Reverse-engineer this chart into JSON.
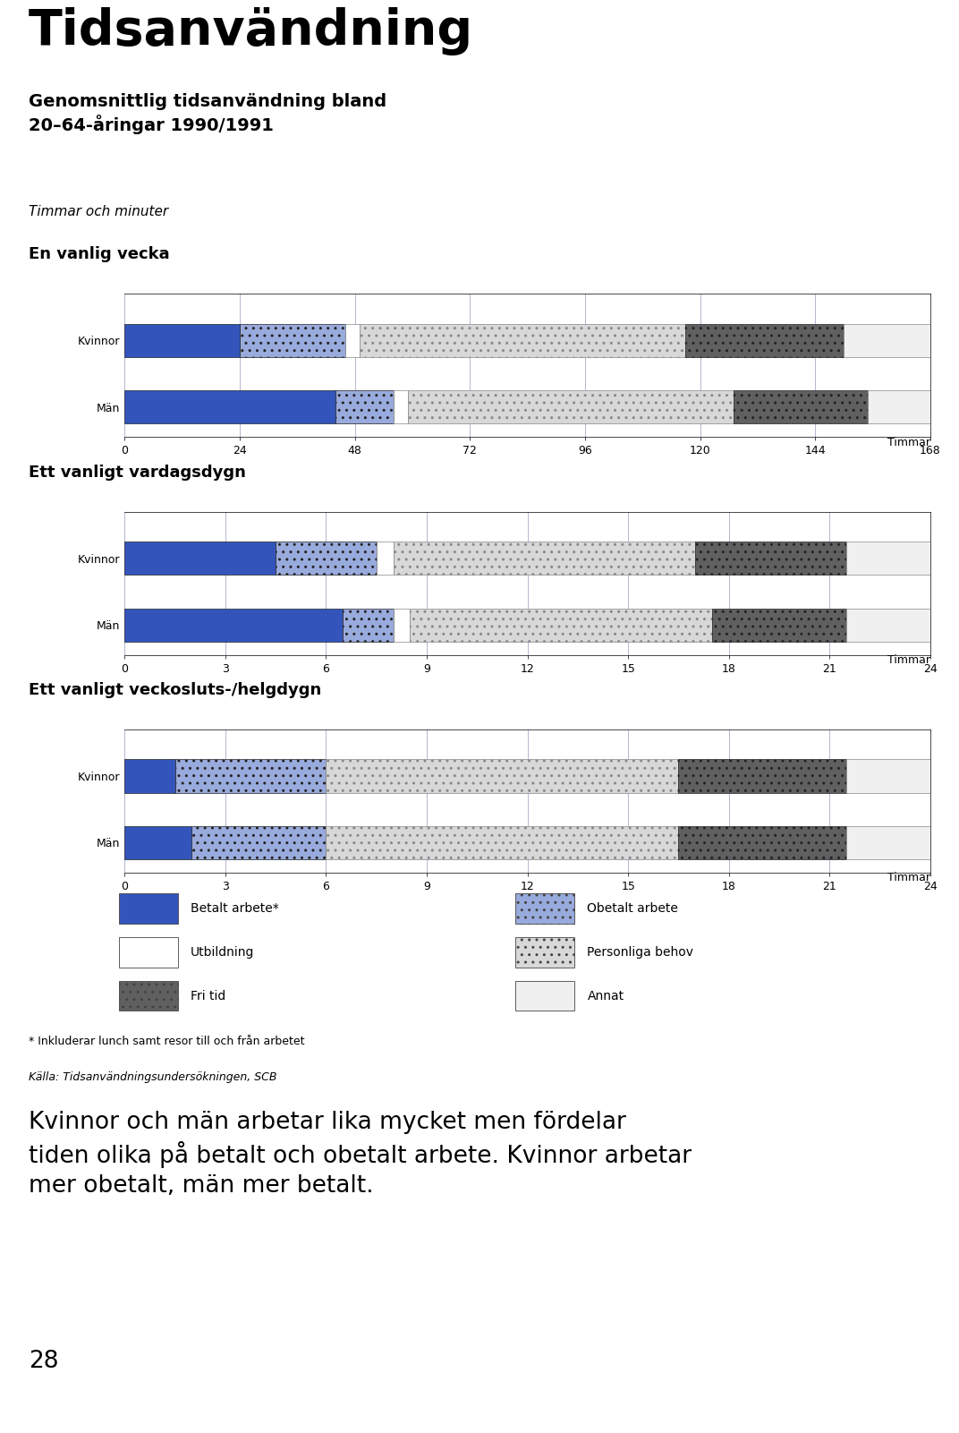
{
  "title": "Tidsanvändning",
  "subtitle_bold": "Genomsnittlig tidsanvändning bland\n20–64-åringar 1990/1991",
  "subtitle_italic": "Timmar och minuter",
  "section1_title": "En vanlig vecka",
  "section2_title": "Ett vanligt vardagsdygn",
  "section3_title": "Ett vanligt veckosluts-/helgdygn",
  "xlabel": "Timmar",
  "categories": [
    "Kvinnor",
    "Män"
  ],
  "colors": {
    "betalt_arbete": "#3355BB",
    "obetalt_arbete": "#99AADD",
    "utbildning": "#FFFFFF",
    "personliga_behov": "#D8D8D8",
    "fri_tid": "#606060",
    "annat": "#F0F0F0"
  },
  "legend_labels": [
    "Betalt arbete*",
    "Obetalt arbete",
    "Utbildning",
    "Personliga behov",
    "Fri tid",
    "Annat"
  ],
  "chart1": {
    "xlim": [
      0,
      168
    ],
    "xticks": [
      0,
      24,
      48,
      72,
      96,
      120,
      144,
      168
    ],
    "data": {
      "Kvinnor": [
        24.0,
        22.0,
        3.0,
        68.0,
        33.0,
        18.0
      ],
      "Män": [
        44.0,
        12.0,
        3.0,
        68.0,
        28.0,
        13.0
      ]
    }
  },
  "chart2": {
    "xlim": [
      0,
      24
    ],
    "xticks": [
      0,
      3,
      6,
      9,
      12,
      15,
      18,
      21,
      24
    ],
    "data": {
      "Kvinnor": [
        4.5,
        3.0,
        0.5,
        9.0,
        4.5,
        2.5
      ],
      "Män": [
        6.5,
        1.5,
        0.5,
        9.0,
        4.0,
        2.5
      ]
    }
  },
  "chart3": {
    "xlim": [
      0,
      24
    ],
    "xticks": [
      0,
      3,
      6,
      9,
      12,
      15,
      18,
      21,
      24
    ],
    "data": {
      "Kvinnor": [
        1.5,
        4.5,
        0.0,
        10.5,
        5.0,
        2.5
      ],
      "Män": [
        2.0,
        4.0,
        0.0,
        10.5,
        5.0,
        2.5
      ]
    }
  },
  "footnote1": "* Inkluderar lunch samt resor till och från arbetet",
  "footnote2": "Källa: Tidsanvändningsundersökningen, SCB",
  "body_text": "Kvinnor och män arbetar lika mycket men fördelar\ntiden olika på betalt och obetalt arbete. Kvinnor arbetar\nmer obetalt, män mer betalt.",
  "page_number": "28",
  "background_color": "#FFFFFF"
}
